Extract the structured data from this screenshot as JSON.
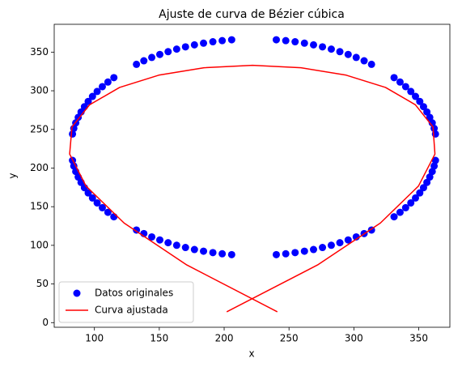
{
  "chart_data": {
    "type": "scatter",
    "title": "Ajuste de curva de Bézier cúbica",
    "xlabel": "x",
    "ylabel": "y",
    "xlim": [
      69,
      374
    ],
    "ylim": [
      -6,
      386
    ],
    "xticks": [
      100,
      150,
      200,
      250,
      300,
      350
    ],
    "yticks": [
      0,
      50,
      100,
      150,
      200,
      250,
      300,
      350
    ],
    "legend": "lower left",
    "series": [
      {
        "name": "Datos originales",
        "type": "scatter",
        "color": "#0000ff",
        "x": [
          362.9,
          361.9,
          360.4,
          358.5,
          356.3,
          353.7,
          350.8,
          347.5,
          343.9,
          339.9,
          335.6,
          331.0,
          313.6,
          307.9,
          301.8,
          295.6,
          289.2,
          282.6,
          275.8,
          268.9,
          261.9,
          254.7,
          247.5,
          240.2,
          83.1,
          84.1,
          85.6,
          87.5,
          89.7,
          92.3,
          95.2,
          98.5,
          102.1,
          106.1,
          110.4,
          115.0,
          132.4,
          138.1,
          144.2,
          150.4,
          156.8,
          163.4,
          170.2,
          177.1,
          184.1,
          191.3,
          198.5,
          205.8,
          83.1,
          84.1,
          85.6,
          87.5,
          89.7,
          92.3,
          95.2,
          98.5,
          102.1,
          106.1,
          110.4,
          115.0,
          132.4,
          138.1,
          144.2,
          150.4,
          156.8,
          163.4,
          170.2,
          177.1,
          184.1,
          191.3,
          198.5,
          205.8,
          362.9,
          361.9,
          360.4,
          358.5,
          356.3,
          353.7,
          350.8,
          347.5,
          343.9,
          339.9,
          335.6,
          331.0,
          313.6,
          307.9,
          301.8,
          295.6,
          289.2,
          282.6,
          275.8,
          268.9,
          261.9,
          254.7,
          247.5,
          240.2
        ],
        "y": [
          244.1,
          251.3,
          258.5,
          265.6,
          272.6,
          279.4,
          286.2,
          292.7,
          299.1,
          305.3,
          311.3,
          317.0,
          334.2,
          338.8,
          343.1,
          347.0,
          350.6,
          353.9,
          356.8,
          359.4,
          361.6,
          363.4,
          364.9,
          366.0,
          244.1,
          251.3,
          258.5,
          265.6,
          272.6,
          279.4,
          286.2,
          292.7,
          299.1,
          305.3,
          311.3,
          317.0,
          334.2,
          338.8,
          343.1,
          347.0,
          350.6,
          353.9,
          356.8,
          359.4,
          361.6,
          363.4,
          364.9,
          366.0,
          209.9,
          202.7,
          195.5,
          188.4,
          181.4,
          174.6,
          167.8,
          161.3,
          154.9,
          148.7,
          142.7,
          137.0,
          119.8,
          115.2,
          110.9,
          107.0,
          103.4,
          100.1,
          97.2,
          94.6,
          92.4,
          90.6,
          89.1,
          88.0,
          209.9,
          202.7,
          195.5,
          188.4,
          181.4,
          174.6,
          167.8,
          161.3,
          154.9,
          148.7,
          142.7,
          137.0,
          119.8,
          115.2,
          110.9,
          107.0,
          103.4,
          100.1,
          97.2,
          94.6,
          92.4,
          90.6,
          89.1,
          88.0
        ]
      },
      {
        "name": "Curva ajustada",
        "type": "line",
        "color": "#ff0000",
        "x": [
          202,
          272.0,
          320.4,
          349.8,
          362.5,
          361.0,
          347.4,
          324.4,
          294.1,
          259.2,
          221.9,
          184.5,
          149.6,
          119.4,
          96.3,
          82.7,
          80.9,
          93.5,
          122.9,
          171.2,
          241
        ],
        "y": [
          14,
          74.6,
          128.8,
          176.7,
          218.1,
          253.2,
          281.9,
          304.3,
          320.2,
          329.8,
          333.0,
          329.8,
          320.2,
          304.3,
          281.9,
          253.2,
          218.1,
          176.7,
          128.8,
          74.6,
          14
        ]
      }
    ]
  }
}
